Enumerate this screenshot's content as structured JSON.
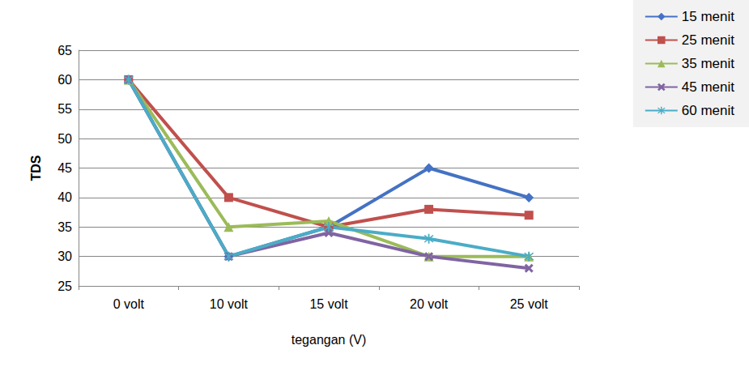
{
  "chart_data": {
    "type": "line",
    "x_label": "tegangan (V)",
    "y_label": "TDS",
    "categories": [
      "0 volt",
      "10 volt",
      "15 volt",
      "20 volt",
      "25 volt"
    ],
    "series": [
      {
        "name": "15 menit",
        "color": "#4472c4",
        "marker": "diamond",
        "values": [
          60,
          30,
          35,
          45,
          40
        ]
      },
      {
        "name": "25 menit",
        "color": "#c0504d",
        "marker": "square",
        "values": [
          60,
          40,
          35,
          38,
          37
        ]
      },
      {
        "name": "35 menit",
        "color": "#9bbb59",
        "marker": "triangle",
        "values": [
          60,
          35,
          36,
          30,
          30
        ]
      },
      {
        "name": "45 menit",
        "color": "#8064a2",
        "marker": "x",
        "values": [
          60,
          30,
          34,
          30,
          28
        ]
      },
      {
        "name": "60 menit",
        "color": "#4bacc6",
        "marker": "star",
        "values": [
          60,
          30,
          35,
          33,
          30
        ]
      }
    ],
    "ylim": [
      25,
      65
    ],
    "yticks": [
      25,
      30,
      35,
      40,
      45,
      50,
      55,
      60,
      65
    ],
    "grid": true,
    "legend": "top-right"
  }
}
